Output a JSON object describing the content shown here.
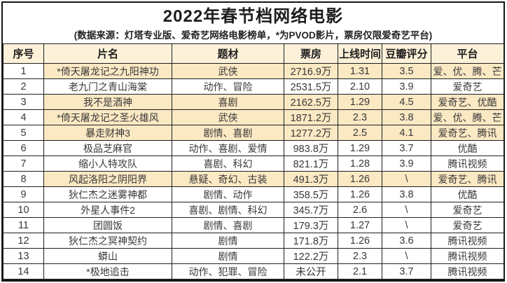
{
  "title": "2022年春节档网络电影",
  "subtitle": "(数据来源：灯塔专业版、爱奇艺网络电影榜单，*为PVOD影片，票房仅限爱奇艺平台)",
  "colors": {
    "highlight_row_bg": "#fbe9c4",
    "header_row_bg": "#fdf2d9",
    "border": "#1f1f1f",
    "text": "#383838",
    "background": "#ffffff"
  },
  "chart_data": {
    "type": "table",
    "title": "2022年春节档网络电影",
    "subtitle": "(数据来源：灯塔专业版、爱奇艺网络电影榜单，*为PVOD影片，票房仅限爱奇艺平台)",
    "columns": [
      "序号",
      "片名",
      "题材",
      "票房",
      "上线时间",
      "豆瓣评分",
      "平台"
    ],
    "highlighted_rows": [
      1,
      3,
      4,
      5,
      8
    ],
    "rows": [
      [
        "1",
        "*倚天屠龙记之九阳神功",
        "武侠",
        "2716.9万",
        "1.31",
        "3.5",
        "爱、优、腾、芒"
      ],
      [
        "2",
        "老九门之青山海棠",
        "动作、冒险",
        "2531.5万",
        "2.10",
        "3.9",
        "爱奇艺"
      ],
      [
        "3",
        "我不是酒神",
        "喜剧",
        "2162.5万",
        "1.29",
        "4.5",
        "爱奇艺、优酷"
      ],
      [
        "4",
        "*倚天屠龙记之圣火雄风",
        "武侠",
        "1871.2万",
        "2.3",
        "3.8",
        "爱、优、腾、芒"
      ],
      [
        "5",
        "暴走财神3",
        "剧情、喜剧",
        "1277.2万",
        "2.5",
        "4.1",
        "爱奇艺、腾讯"
      ],
      [
        "6",
        "极品芝麻官",
        "动作、喜剧、爱情",
        "983.8万",
        "1.29",
        "3.7",
        "优酷"
      ],
      [
        "7",
        "缩小人特攻队",
        "喜剧、科幻",
        "821.1万",
        "1.28",
        "3.9",
        "腾讯视频"
      ],
      [
        "8",
        "风起洛阳之阴阳界",
        "悬疑、奇幻、古装",
        "491.3万",
        "1.26",
        "\\",
        "爱奇艺、腾讯"
      ],
      [
        "9",
        "狄仁杰之迷雾神都",
        "剧情、动作",
        "358.5万",
        "1.26",
        "3.8",
        "优酷"
      ],
      [
        "10",
        "外星人事件2",
        "喜剧、剧情、科幻",
        "345.7万",
        "2.6",
        "\\",
        "爱奇艺"
      ],
      [
        "11",
        "团圆饭",
        "剧情、喜剧",
        "179.3万",
        "1.27",
        "\\",
        "爱奇艺"
      ],
      [
        "12",
        "狄仁杰之冥神契约",
        "剧情",
        "171.8万",
        "1.26",
        "3.6",
        "腾讯视频"
      ],
      [
        "13",
        "蟒山",
        "剧情",
        "122.2万",
        "2.3",
        "\\",
        "腾讯视频"
      ],
      [
        "14",
        "*极地追击",
        "动作、犯罪、冒险",
        "未公开",
        "2.1",
        "3.7",
        "腾讯视频"
      ]
    ]
  }
}
